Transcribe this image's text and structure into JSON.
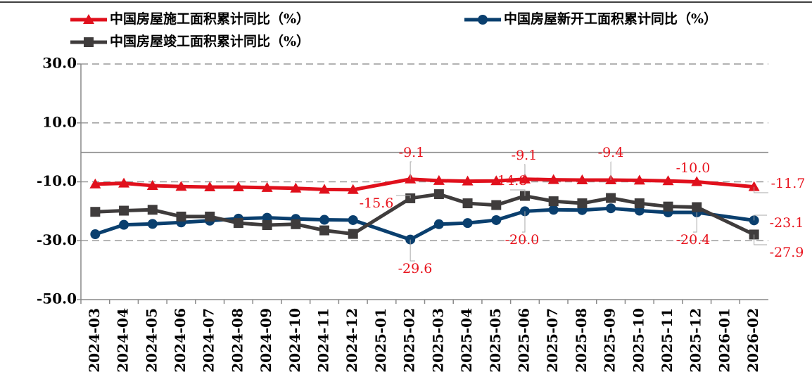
{
  "chart_data": {
    "type": "line",
    "categories": [
      "2024-03",
      "2024-04",
      "2024-05",
      "2024-06",
      "2024-07",
      "2024-08",
      "2024-09",
      "2024-10",
      "2024-11",
      "2024-12",
      "2025-01",
      "2025-02",
      "2025-03",
      "2025-04",
      "2025-05",
      "2025-06",
      "2025-07",
      "2025-08",
      "2025-09",
      "2025-10",
      "2025-11",
      "2025-12",
      "2026-01",
      "2026-02"
    ],
    "series": [
      {
        "name": "中国房屋施工面积累计同比（%）",
        "color": "#e0101c",
        "marker": "triangle",
        "values": [
          -10.8,
          -10.5,
          -11.3,
          -11.6,
          -11.8,
          -11.8,
          -12.0,
          -12.2,
          -12.6,
          -12.7,
          null,
          -9.1,
          -9.6,
          -9.8,
          -9.7,
          -9.1,
          -9.3,
          -9.4,
          -9.4,
          -9.5,
          -9.7,
          -10.0,
          null,
          -11.7
        ],
        "value_labels": [
          null,
          null,
          null,
          null,
          null,
          null,
          null,
          null,
          null,
          null,
          null,
          "-9.1",
          null,
          null,
          null,
          "-9.1",
          null,
          null,
          "-9.4",
          null,
          null,
          "-10.0",
          null,
          "-11.7"
        ]
      },
      {
        "name": "中国房屋新开工面积累计同比（%）",
        "color": "#0a3f6e",
        "marker": "circle",
        "values": [
          -27.8,
          -24.6,
          -24.3,
          -23.8,
          -23.2,
          -22.5,
          -22.2,
          -22.6,
          -22.9,
          -23.0,
          null,
          -29.6,
          -24.4,
          -24.0,
          -23.0,
          -20.0,
          -19.5,
          -19.6,
          -19.0,
          -19.8,
          -20.4,
          -20.4,
          null,
          -23.1
        ],
        "value_labels": [
          null,
          null,
          null,
          null,
          null,
          null,
          null,
          null,
          null,
          null,
          null,
          "-29.6",
          null,
          null,
          null,
          "-20.0",
          null,
          null,
          null,
          null,
          null,
          "-20.4",
          null,
          "-23.1"
        ]
      },
      {
        "name": "中国房屋竣工面积累计同比（%）",
        "color": "#3f3c3c",
        "marker": "square",
        "values": [
          -20.2,
          -19.8,
          -19.5,
          -21.8,
          -21.8,
          -24.0,
          -24.7,
          -24.4,
          -26.5,
          -27.7,
          null,
          -15.6,
          -14.2,
          -17.3,
          -17.9,
          -14.8,
          -16.6,
          -17.3,
          -15.5,
          -17.3,
          -18.4,
          -18.6,
          null,
          -27.9
        ],
        "value_labels": [
          null,
          null,
          null,
          null,
          null,
          null,
          null,
          null,
          null,
          null,
          null,
          "-15.6",
          null,
          null,
          null,
          "-14.8",
          null,
          null,
          null,
          null,
          null,
          null,
          null,
          "-27.9"
        ]
      }
    ],
    "ylim": [
      -50,
      30
    ],
    "yticks": [
      {
        "value": -50,
        "label": "-50.0"
      },
      {
        "value": -30,
        "label": "-30.0"
      },
      {
        "value": -10,
        "label": "-10.0"
      },
      {
        "value": 10,
        "label": "10.0"
      },
      {
        "value": 30,
        "label": "30.0"
      }
    ],
    "grid": true
  }
}
